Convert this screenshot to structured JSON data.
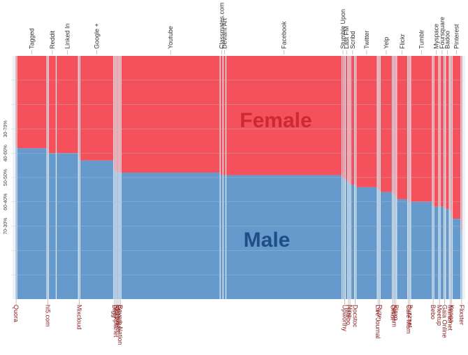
{
  "chart_data": {
    "type": "bar",
    "subtype": "marimekko-stacked-100",
    "title": "",
    "xlabel": "",
    "ylabel": "",
    "ylim": [
      0,
      100
    ],
    "grid": true,
    "legend": "none",
    "y_scale_labels": [
      "30-70%",
      "40-60%",
      "50-50%",
      "60-40%",
      "70-30%"
    ],
    "y_scale_values": [
      30,
      40,
      50,
      60,
      70
    ],
    "annotations": [
      {
        "text": "Female",
        "series": "Female",
        "position": "upper-center"
      },
      {
        "text": "Male",
        "series": "Male",
        "position": "lower-center"
      }
    ],
    "series_colors": {
      "Female": "#f4515d",
      "Male": "#6699cc"
    },
    "annotation_colors": {
      "Female": "#cc2a33",
      "Male": "#1f4e86"
    },
    "label_colors": {
      "top": "#333333",
      "bottom": "#8b1a1a"
    },
    "categories": [
      {
        "name": "Quora",
        "share": 0.6,
        "male": 63,
        "label_pos": "bottom"
      },
      {
        "name": "Tagged",
        "share": 12.5,
        "male": 62,
        "label_pos": "top"
      },
      {
        "name": "hi5.com",
        "share": 0.6,
        "male": 60,
        "label_pos": "bottom"
      },
      {
        "name": "Reddit",
        "share": 3.2,
        "male": 60,
        "label_pos": "top"
      },
      {
        "name": "Linked In",
        "share": 9.2,
        "male": 60,
        "label_pos": "top"
      },
      {
        "name": "Mixcloud",
        "share": 0.6,
        "male": 58,
        "label_pos": "bottom"
      },
      {
        "name": "Google +",
        "share": 14.0,
        "male": 57,
        "label_pos": "top"
      },
      {
        "name": "Digg",
        "share": 0.6,
        "male": 53,
        "label_pos": "bottom"
      },
      {
        "name": "Blackplanet",
        "share": 0.6,
        "male": 53,
        "label_pos": "bottom"
      },
      {
        "name": "Meetme",
        "share": 0.6,
        "male": 52,
        "label_pos": "bottom"
      },
      {
        "name": "Friendster",
        "share": 0.6,
        "male": 52,
        "label_pos": "bottom"
      },
      {
        "name": "Reverb Nation",
        "share": 0.6,
        "male": 52,
        "label_pos": "bottom"
      },
      {
        "name": "Youtube",
        "share": 41.0,
        "male": 52,
        "label_pos": "top"
      },
      {
        "name": "Classmates.com",
        "share": 1.2,
        "male": 51,
        "label_pos": "top"
      },
      {
        "name": "Deviant Art",
        "share": 1.2,
        "male": 51,
        "label_pos": "top"
      },
      {
        "name": "Facebook",
        "share": 48.0,
        "male": 51,
        "label_pos": "top"
      },
      {
        "name": "Stumble Upon",
        "share": 0.8,
        "male": 50,
        "label_pos": "top"
      },
      {
        "name": "Upworthy",
        "share": 0.6,
        "male": 49,
        "label_pos": "bottom"
      },
      {
        "name": "Last FM",
        "share": 1.0,
        "male": 49,
        "label_pos": "top"
      },
      {
        "name": "Hatebo",
        "share": 0.6,
        "male": 48,
        "label_pos": "bottom"
      },
      {
        "name": "Ning",
        "share": 0.6,
        "male": 47,
        "label_pos": "bottom"
      },
      {
        "name": "Scribd",
        "share": 1.6,
        "male": 47,
        "label_pos": "top"
      },
      {
        "name": "Docstoc",
        "share": 0.6,
        "male": 47,
        "label_pos": "bottom"
      },
      {
        "name": "Twitter",
        "share": 8.8,
        "male": 46,
        "label_pos": "top"
      },
      {
        "name": "Live Journal",
        "share": 0.6,
        "male": 45,
        "label_pos": "bottom"
      },
      {
        "name": "Ryze",
        "share": 0.6,
        "male": 45,
        "label_pos": "bottom"
      },
      {
        "name": "Yelp",
        "share": 5.0,
        "male": 44,
        "label_pos": "top"
      },
      {
        "name": "Orkut",
        "share": 0.6,
        "male": 43,
        "label_pos": "bottom"
      },
      {
        "name": "Stickam",
        "share": 0.6,
        "male": 43,
        "label_pos": "bottom"
      },
      {
        "name": "Plaxo",
        "share": 0.6,
        "male": 42,
        "label_pos": "bottom"
      },
      {
        "name": "Flickr",
        "share": 4.6,
        "male": 41,
        "label_pos": "top"
      },
      {
        "name": "Cafe Mom",
        "share": 0.6,
        "male": 40,
        "label_pos": "bottom"
      },
      {
        "name": "Buzznet",
        "share": 0.6,
        "male": 40,
        "label_pos": "bottom"
      },
      {
        "name": "Tumblr",
        "share": 9.0,
        "male": 40,
        "label_pos": "top"
      },
      {
        "name": "Bebo",
        "share": 0.6,
        "male": 38,
        "label_pos": "bottom"
      },
      {
        "name": "Myspace",
        "share": 2.0,
        "male": 38,
        "label_pos": "top"
      },
      {
        "name": "Meetup",
        "share": 0.6,
        "male": 38,
        "label_pos": "bottom"
      },
      {
        "name": "Foursquare",
        "share": 1.6,
        "male": 38,
        "label_pos": "top"
      },
      {
        "name": "Gaia Online",
        "share": 0.6,
        "male": 37,
        "label_pos": "bottom"
      },
      {
        "name": "Badoo",
        "share": 1.6,
        "male": 37,
        "label_pos": "top"
      },
      {
        "name": "Mumsnet",
        "share": 0.6,
        "male": 36,
        "label_pos": "bottom"
      },
      {
        "name": "Xanga",
        "share": 0.6,
        "male": 34,
        "label_pos": "bottom"
      },
      {
        "name": "Pinterest",
        "share": 3.6,
        "male": 33,
        "label_pos": "top"
      },
      {
        "name": "Flixster",
        "share": 0.6,
        "male": 28,
        "label_pos": "bottom"
      }
    ]
  }
}
